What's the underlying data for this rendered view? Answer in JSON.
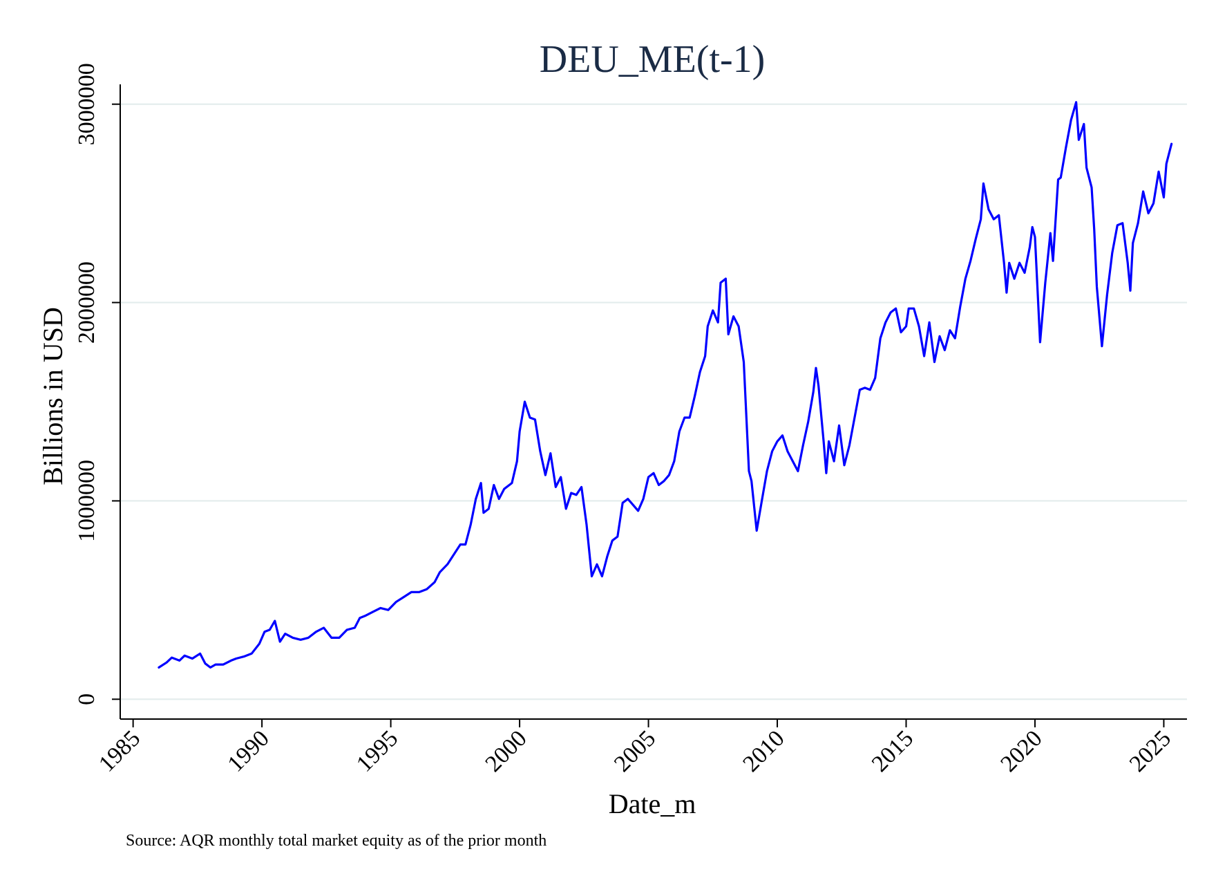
{
  "chart_data": {
    "type": "line",
    "title": "DEU_ME(t-1)",
    "xlabel": "Date_m",
    "ylabel": "Billions in USD",
    "note": "Source: AQR monthly total market equity as of the prior month",
    "xlim": [
      1984.5,
      2025.9
    ],
    "ylim": [
      -100000,
      3100000
    ],
    "x_ticks": [
      1985,
      1990,
      1995,
      2000,
      2005,
      2010,
      2015,
      2020,
      2025
    ],
    "x_tick_labels": [
      "1985",
      "1990",
      "1995",
      "2000",
      "2005",
      "2010",
      "2015",
      "2020",
      "2025"
    ],
    "y_ticks": [
      0,
      1000000,
      2000000,
      3000000
    ],
    "y_tick_labels": [
      "0",
      "1000000",
      "2000000",
      "3000000"
    ],
    "grid": "horizontal",
    "legend": "none",
    "series": [
      {
        "color": "#0000ff",
        "points": [
          [
            1986.0,
            160000
          ],
          [
            1986.3,
            185000
          ],
          [
            1986.5,
            210000
          ],
          [
            1986.8,
            195000
          ],
          [
            1987.0,
            220000
          ],
          [
            1987.3,
            205000
          ],
          [
            1987.6,
            230000
          ],
          [
            1987.8,
            180000
          ],
          [
            1988.0,
            160000
          ],
          [
            1988.2,
            175000
          ],
          [
            1988.5,
            175000
          ],
          [
            1988.8,
            195000
          ],
          [
            1989.0,
            205000
          ],
          [
            1989.3,
            215000
          ],
          [
            1989.6,
            230000
          ],
          [
            1989.9,
            280000
          ],
          [
            1990.1,
            340000
          ],
          [
            1990.3,
            350000
          ],
          [
            1990.5,
            395000
          ],
          [
            1990.7,
            290000
          ],
          [
            1990.9,
            330000
          ],
          [
            1991.2,
            310000
          ],
          [
            1991.5,
            300000
          ],
          [
            1991.8,
            310000
          ],
          [
            1992.1,
            340000
          ],
          [
            1992.4,
            360000
          ],
          [
            1992.7,
            310000
          ],
          [
            1993.0,
            310000
          ],
          [
            1993.3,
            350000
          ],
          [
            1993.6,
            360000
          ],
          [
            1993.8,
            410000
          ],
          [
            1994.0,
            420000
          ],
          [
            1994.3,
            440000
          ],
          [
            1994.6,
            460000
          ],
          [
            1994.9,
            450000
          ],
          [
            1995.2,
            490000
          ],
          [
            1995.5,
            515000
          ],
          [
            1995.8,
            540000
          ],
          [
            1996.1,
            540000
          ],
          [
            1996.4,
            555000
          ],
          [
            1996.7,
            590000
          ],
          [
            1996.9,
            640000
          ],
          [
            1997.2,
            680000
          ],
          [
            1997.5,
            740000
          ],
          [
            1997.7,
            780000
          ],
          [
            1997.9,
            780000
          ],
          [
            1998.1,
            880000
          ],
          [
            1998.3,
            1010000
          ],
          [
            1998.5,
            1090000
          ],
          [
            1998.6,
            940000
          ],
          [
            1998.8,
            960000
          ],
          [
            1999.0,
            1080000
          ],
          [
            1999.2,
            1010000
          ],
          [
            1999.4,
            1060000
          ],
          [
            1999.7,
            1090000
          ],
          [
            1999.9,
            1200000
          ],
          [
            2000.0,
            1350000
          ],
          [
            2000.2,
            1500000
          ],
          [
            2000.4,
            1420000
          ],
          [
            2000.6,
            1410000
          ],
          [
            2000.8,
            1250000
          ],
          [
            2001.0,
            1130000
          ],
          [
            2001.2,
            1240000
          ],
          [
            2001.4,
            1070000
          ],
          [
            2001.6,
            1120000
          ],
          [
            2001.8,
            960000
          ],
          [
            2002.0,
            1040000
          ],
          [
            2002.2,
            1030000
          ],
          [
            2002.4,
            1070000
          ],
          [
            2002.6,
            880000
          ],
          [
            2002.8,
            620000
          ],
          [
            2003.0,
            680000
          ],
          [
            2003.2,
            620000
          ],
          [
            2003.4,
            720000
          ],
          [
            2003.6,
            800000
          ],
          [
            2003.8,
            820000
          ],
          [
            2004.0,
            990000
          ],
          [
            2004.2,
            1010000
          ],
          [
            2004.4,
            980000
          ],
          [
            2004.6,
            950000
          ],
          [
            2004.8,
            1010000
          ],
          [
            2005.0,
            1120000
          ],
          [
            2005.2,
            1140000
          ],
          [
            2005.4,
            1080000
          ],
          [
            2005.6,
            1100000
          ],
          [
            2005.8,
            1130000
          ],
          [
            2006.0,
            1200000
          ],
          [
            2006.2,
            1350000
          ],
          [
            2006.4,
            1420000
          ],
          [
            2006.6,
            1420000
          ],
          [
            2006.8,
            1530000
          ],
          [
            2007.0,
            1650000
          ],
          [
            2007.2,
            1730000
          ],
          [
            2007.3,
            1880000
          ],
          [
            2007.5,
            1960000
          ],
          [
            2007.7,
            1900000
          ],
          [
            2007.8,
            2100000
          ],
          [
            2008.0,
            2120000
          ],
          [
            2008.1,
            1840000
          ],
          [
            2008.3,
            1930000
          ],
          [
            2008.5,
            1880000
          ],
          [
            2008.7,
            1700000
          ],
          [
            2008.9,
            1150000
          ],
          [
            2009.0,
            1100000
          ],
          [
            2009.2,
            850000
          ],
          [
            2009.4,
            1000000
          ],
          [
            2009.6,
            1150000
          ],
          [
            2009.8,
            1250000
          ],
          [
            2010.0,
            1300000
          ],
          [
            2010.2,
            1330000
          ],
          [
            2010.4,
            1250000
          ],
          [
            2010.6,
            1200000
          ],
          [
            2010.8,
            1150000
          ],
          [
            2011.0,
            1280000
          ],
          [
            2011.2,
            1400000
          ],
          [
            2011.4,
            1550000
          ],
          [
            2011.5,
            1670000
          ],
          [
            2011.6,
            1580000
          ],
          [
            2011.8,
            1300000
          ],
          [
            2011.9,
            1140000
          ],
          [
            2012.0,
            1300000
          ],
          [
            2012.2,
            1200000
          ],
          [
            2012.4,
            1380000
          ],
          [
            2012.6,
            1180000
          ],
          [
            2012.8,
            1280000
          ],
          [
            2013.0,
            1420000
          ],
          [
            2013.2,
            1560000
          ],
          [
            2013.4,
            1570000
          ],
          [
            2013.6,
            1560000
          ],
          [
            2013.8,
            1620000
          ],
          [
            2014.0,
            1820000
          ],
          [
            2014.2,
            1900000
          ],
          [
            2014.4,
            1950000
          ],
          [
            2014.6,
            1970000
          ],
          [
            2014.8,
            1850000
          ],
          [
            2015.0,
            1880000
          ],
          [
            2015.1,
            1970000
          ],
          [
            2015.3,
            1970000
          ],
          [
            2015.5,
            1880000
          ],
          [
            2015.7,
            1730000
          ],
          [
            2015.9,
            1900000
          ],
          [
            2016.1,
            1700000
          ],
          [
            2016.3,
            1830000
          ],
          [
            2016.5,
            1760000
          ],
          [
            2016.7,
            1860000
          ],
          [
            2016.9,
            1820000
          ],
          [
            2017.1,
            1980000
          ],
          [
            2017.3,
            2120000
          ],
          [
            2017.5,
            2210000
          ],
          [
            2017.7,
            2320000
          ],
          [
            2017.9,
            2420000
          ],
          [
            2018.0,
            2600000
          ],
          [
            2018.2,
            2470000
          ],
          [
            2018.4,
            2420000
          ],
          [
            2018.6,
            2440000
          ],
          [
            2018.8,
            2200000
          ],
          [
            2018.9,
            2050000
          ],
          [
            2019.0,
            2200000
          ],
          [
            2019.2,
            2120000
          ],
          [
            2019.4,
            2200000
          ],
          [
            2019.6,
            2150000
          ],
          [
            2019.8,
            2280000
          ],
          [
            2019.9,
            2380000
          ],
          [
            2020.0,
            2330000
          ],
          [
            2020.2,
            1800000
          ],
          [
            2020.4,
            2100000
          ],
          [
            2020.6,
            2350000
          ],
          [
            2020.7,
            2210000
          ],
          [
            2020.9,
            2620000
          ],
          [
            2021.0,
            2630000
          ],
          [
            2021.2,
            2780000
          ],
          [
            2021.4,
            2920000
          ],
          [
            2021.6,
            3010000
          ],
          [
            2021.7,
            2820000
          ],
          [
            2021.9,
            2900000
          ],
          [
            2022.0,
            2680000
          ],
          [
            2022.2,
            2580000
          ],
          [
            2022.3,
            2370000
          ],
          [
            2022.4,
            2080000
          ],
          [
            2022.6,
            1780000
          ],
          [
            2022.8,
            2040000
          ],
          [
            2023.0,
            2250000
          ],
          [
            2023.2,
            2390000
          ],
          [
            2023.4,
            2400000
          ],
          [
            2023.6,
            2200000
          ],
          [
            2023.7,
            2060000
          ],
          [
            2023.8,
            2300000
          ],
          [
            2024.0,
            2400000
          ],
          [
            2024.2,
            2560000
          ],
          [
            2024.4,
            2450000
          ],
          [
            2024.6,
            2500000
          ],
          [
            2024.8,
            2660000
          ],
          [
            2025.0,
            2530000
          ],
          [
            2025.1,
            2700000
          ],
          [
            2025.3,
            2800000
          ]
        ]
      }
    ]
  }
}
